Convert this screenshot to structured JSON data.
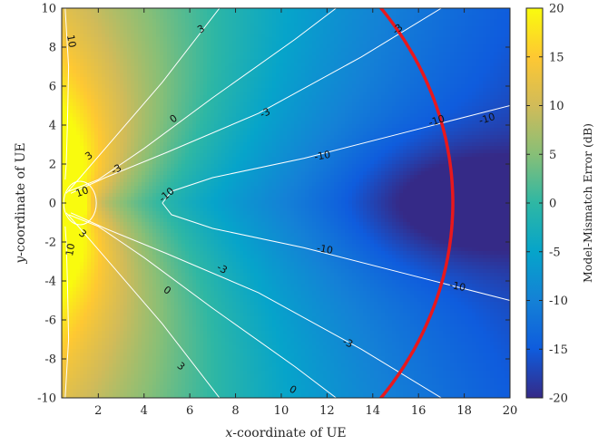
{
  "chart_data": {
    "type": "heatmap",
    "xlabel_prefix": "x",
    "xlabel_suffix": "-coordinate of UE",
    "ylabel_prefix": "y",
    "ylabel_suffix": "-coordinate of UE",
    "colorbar_label": "Model-Mismatch Error (dB)",
    "xlim": [
      0.4,
      20
    ],
    "ylim": [
      -10,
      10
    ],
    "clim": [
      -20,
      20
    ],
    "x_ticks": [
      2,
      4,
      6,
      8,
      10,
      12,
      14,
      16,
      18,
      20
    ],
    "y_ticks": [
      -10,
      -8,
      -6,
      -4,
      -2,
      0,
      2,
      4,
      6,
      8,
      10
    ],
    "colorbar_ticks": [
      -20,
      -15,
      -10,
      -5,
      0,
      5,
      10,
      15,
      20
    ],
    "contour_levels": [
      10,
      3,
      0,
      -3,
      -10
    ],
    "contour_labels": [
      {
        "text": "10",
        "x": 0.8,
        "y": 8.3,
        "rot": 80
      },
      {
        "text": "3",
        "x": 6.5,
        "y": 8.9,
        "rot": -30
      },
      {
        "text": "0",
        "x": 5.3,
        "y": 4.3,
        "rot": -35
      },
      {
        "text": "-3",
        "x": 9.3,
        "y": 4.6,
        "rot": -25
      },
      {
        "text": "3",
        "x": 1.6,
        "y": 2.4,
        "rot": -35
      },
      {
        "text": "-3",
        "x": 2.8,
        "y": 1.7,
        "rot": -30
      },
      {
        "text": "-3",
        "x": 15.1,
        "y": 8.9,
        "rot": -40
      },
      {
        "text": "-10",
        "x": 16.8,
        "y": 4.2,
        "rot": -18
      },
      {
        "text": "-10",
        "x": 19.0,
        "y": 4.3,
        "rot": -18
      },
      {
        "text": "-10",
        "x": 11.8,
        "y": 2.4,
        "rot": -10
      },
      {
        "text": "-10",
        "x": 5.0,
        "y": 0.4,
        "rot": -40
      },
      {
        "text": "10",
        "x": 1.3,
        "y": 0.55,
        "rot": -20
      },
      {
        "text": "10",
        "x": 0.8,
        "y": -2.4,
        "rot": -80
      },
      {
        "text": "3",
        "x": 1.3,
        "y": -1.6,
        "rot": 40
      },
      {
        "text": "-10",
        "x": 11.9,
        "y": -2.4,
        "rot": 10
      },
      {
        "text": "-3",
        "x": 7.4,
        "y": -3.4,
        "rot": 30
      },
      {
        "text": "0",
        "x": 5.0,
        "y": -4.5,
        "rot": 35
      },
      {
        "text": "-10",
        "x": 17.7,
        "y": -4.3,
        "rot": 12
      },
      {
        "text": "-3",
        "x": 12.9,
        "y": -7.2,
        "rot": 25
      },
      {
        "text": "3",
        "x": 5.6,
        "y": -8.4,
        "rot": 40
      },
      {
        "text": "0",
        "x": 10.5,
        "y": -9.6,
        "rot": 30
      }
    ],
    "red_arc": {
      "center_x": 0,
      "center_y": 0,
      "radius": 17.5,
      "color": "#e8181d"
    },
    "colormap": "parula",
    "grid": false
  }
}
